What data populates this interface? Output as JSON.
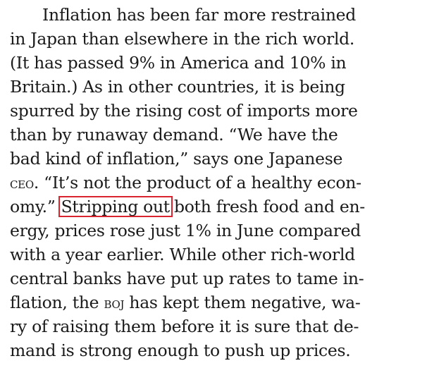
{
  "article": {
    "lines": [
      "Inflation has been far more restrained",
      "in Japan than elsewhere in the rich world.",
      "(It has passed 9% in America and 10% in",
      "Britain.) As in other countries, it is being",
      "spurred by the rising cost of imports more",
      "than by runaway demand. “We have the",
      "bad kind of inflation,” says one Japanese"
    ],
    "line8_abbr": "CEO",
    "line8_rest": ". “It’s not the product of a healthy econ-",
    "line9_before": "omy.”",
    "highlight": "Stripping out",
    "line9_after": "both fresh food and en-",
    "lines_b": [
      "ergy, prices rose just 1% in June compared",
      "with a year earlier. While other rich-world",
      "central banks have put up rates to tame in-"
    ],
    "line13_before": "flation, the",
    "line13_abbr": "BOJ",
    "line13_after": "has kept them negative, wa-",
    "lines_c": [
      "ry of raising them before it is sure that de-",
      "mand is strong enough to push up prices."
    ],
    "highlight_color": "#d9232e"
  }
}
